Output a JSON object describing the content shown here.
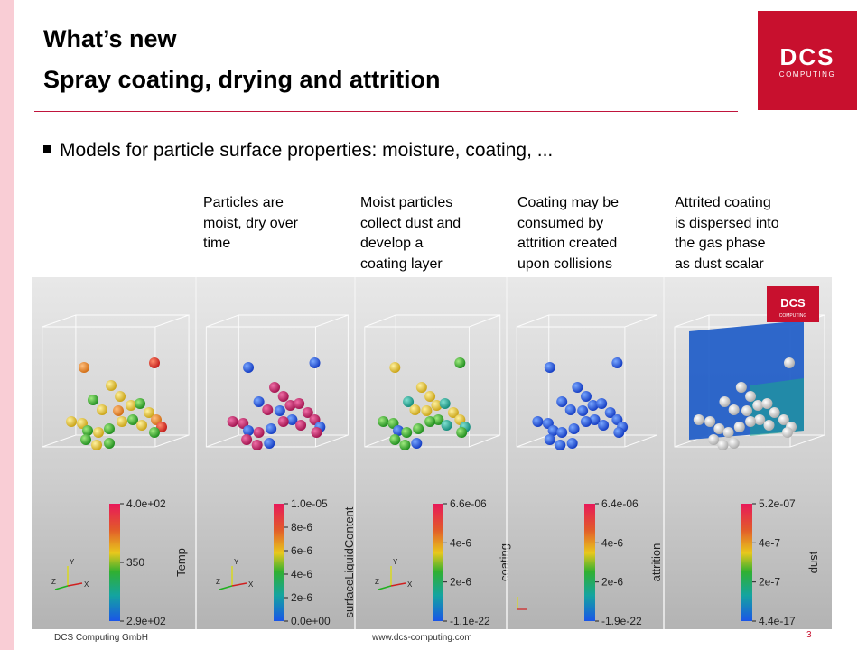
{
  "title": "What’s new",
  "subtitle": "Spray coating, drying and attrition",
  "logo": {
    "main": "DCS",
    "sub": "COMPUTING"
  },
  "bullet": "Models for particle surface properties: moisture, coating, ...",
  "captions": [
    {
      "lines": [
        "Particles are",
        "moist, dry over",
        "time"
      ]
    },
    {
      "lines": [
        "Moist particles",
        "collect dust and",
        "develop a",
        "coating layer"
      ]
    },
    {
      "lines": [
        "Coating may be",
        "consumed by",
        "attrition created",
        "upon collisions"
      ]
    },
    {
      "lines": [
        "Attrited coating",
        "is dispersed into",
        "the gas phase",
        "as dust scalar"
      ]
    }
  ],
  "panels": [
    {
      "scalar": "Temp",
      "ticks": [
        "4.0e+02",
        "350",
        "2.9e+02"
      ],
      "axes": true
    },
    {
      "scalar": "surfaceLiquidContent",
      "ticks": [
        "1.0e-05",
        "8e-6",
        "6e-6",
        "4e-6",
        "2e-6",
        "0.0e+00"
      ],
      "axes": true
    },
    {
      "scalar": "coating",
      "ticks": [
        "6.6e-06",
        "4e-6",
        "2e-6",
        "-1.1e-22"
      ],
      "axes": true
    },
    {
      "scalar": "attrition",
      "ticks": [
        "6.4e-06",
        "4e-6",
        "2e-6",
        "-1.9e-22"
      ],
      "axes": false
    },
    {
      "scalar": "dust",
      "ticks": [
        "5.2e-07",
        "4e-7",
        "2e-7",
        "4.4e-17"
      ],
      "axes": false
    }
  ],
  "axis_labels": {
    "x": "X",
    "y": "Y",
    "z": "Z"
  },
  "footer": {
    "company": "DCS Computing GmbH",
    "url": "www.dcs-computing.com",
    "page": "3"
  }
}
